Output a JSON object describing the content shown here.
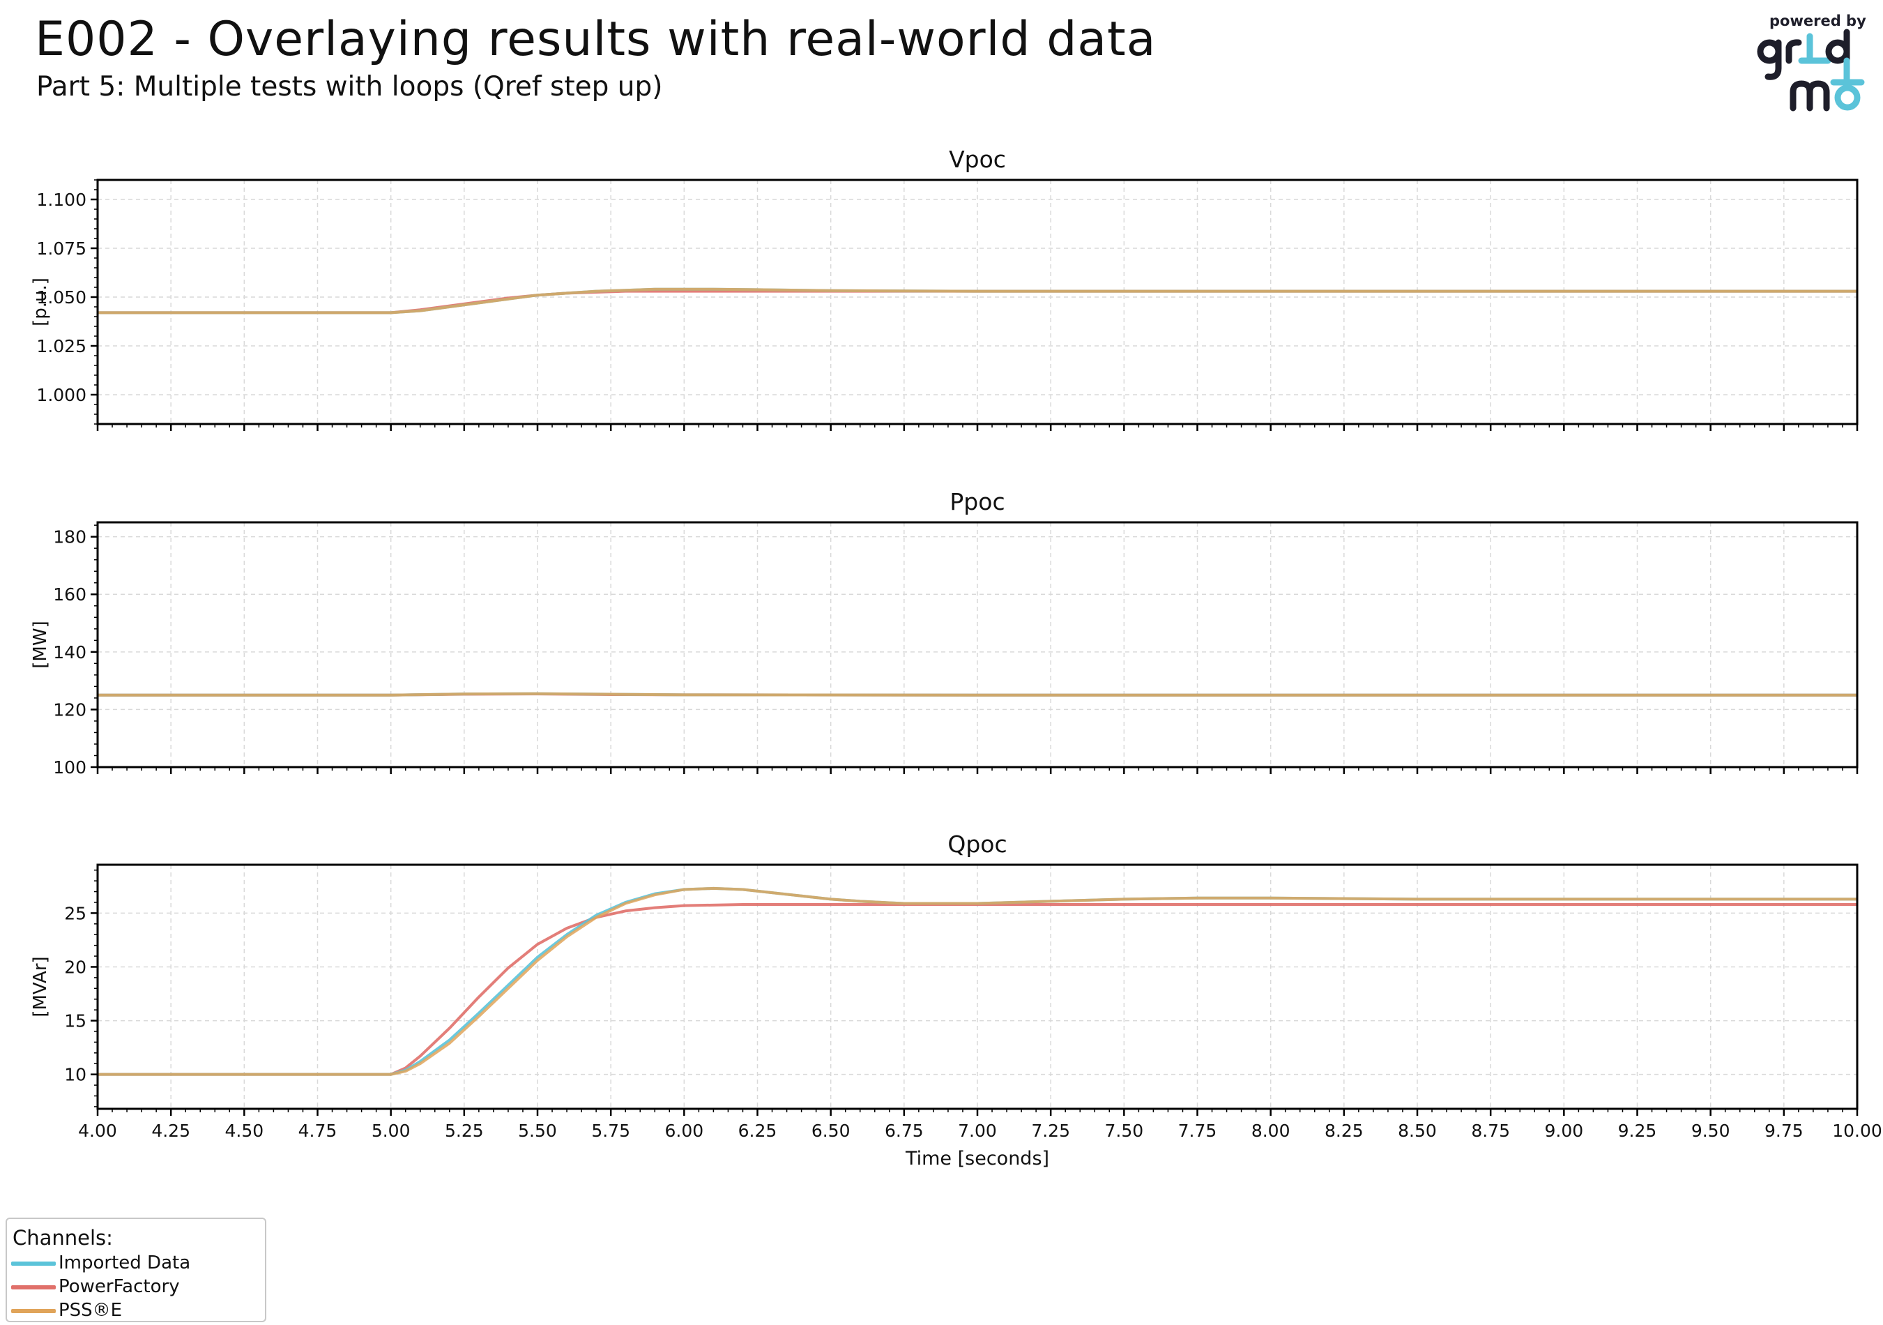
{
  "header": {
    "title": "E002 - Overlaying results with real-world data",
    "subtitle": "Part 5: Multiple tests with loops (Qref step up)"
  },
  "logo": {
    "powered_by": "powered by",
    "brand_text": "gridmo",
    "colors": {
      "dark": "#1e1e2a",
      "accent": "#5bc3d9"
    }
  },
  "legend": {
    "title": "Channels:",
    "placement": "bottom-left",
    "items": [
      {
        "label": "Imported Data",
        "color": "#5bc3d9"
      },
      {
        "label": "PowerFactory",
        "color": "#e0706a"
      },
      {
        "label": "PSS®E",
        "color": "#e0a45a"
      }
    ]
  },
  "chart_data": [
    {
      "type": "line",
      "title": "Vpoc",
      "ylabel": "[p.u.]",
      "xlim": [
        4.0,
        10.0
      ],
      "ylim": [
        0.985,
        1.11
      ],
      "yticks": [
        "1.000",
        "1.025",
        "1.050",
        "1.075",
        "1.100"
      ],
      "grid": true,
      "series": [
        {
          "name": "Imported Data",
          "color": "#5bc3d9",
          "x": [
            4.0,
            5.0,
            5.1,
            5.2,
            5.3,
            5.4,
            5.5,
            5.6,
            5.7,
            5.8,
            5.9,
            6.0,
            6.1,
            6.25,
            6.5,
            7.0,
            8.0,
            9.0,
            10.0
          ],
          "y": [
            1.042,
            1.042,
            1.043,
            1.045,
            1.047,
            1.049,
            1.051,
            1.052,
            1.053,
            1.0535,
            1.054,
            1.054,
            1.054,
            1.0538,
            1.0533,
            1.053,
            1.053,
            1.053,
            1.053
          ]
        },
        {
          "name": "PowerFactory",
          "color": "#e0706a",
          "x": [
            4.0,
            5.0,
            5.1,
            5.2,
            5.3,
            5.4,
            5.5,
            5.6,
            5.7,
            5.8,
            6.0,
            6.5,
            7.0,
            8.0,
            9.0,
            10.0
          ],
          "y": [
            1.042,
            1.042,
            1.0435,
            1.0455,
            1.0475,
            1.0495,
            1.051,
            1.052,
            1.0525,
            1.053,
            1.053,
            1.053,
            1.053,
            1.053,
            1.053,
            1.053
          ]
        },
        {
          "name": "PSS®E",
          "color": "#e0a45a",
          "x": [
            4.0,
            5.0,
            5.1,
            5.2,
            5.3,
            5.4,
            5.5,
            5.6,
            5.7,
            5.8,
            5.9,
            6.0,
            6.1,
            6.25,
            6.5,
            7.0,
            8.0,
            9.0,
            10.0
          ],
          "y": [
            1.042,
            1.042,
            1.043,
            1.045,
            1.047,
            1.049,
            1.051,
            1.052,
            1.053,
            1.0535,
            1.054,
            1.054,
            1.054,
            1.0538,
            1.0533,
            1.053,
            1.053,
            1.053,
            1.053
          ]
        }
      ]
    },
    {
      "type": "line",
      "title": "Ppoc",
      "ylabel": "[MW]",
      "xlim": [
        4.0,
        10.0
      ],
      "ylim": [
        100,
        185
      ],
      "yticks": [
        "100",
        "120",
        "140",
        "160",
        "180"
      ],
      "grid": true,
      "series": [
        {
          "name": "Imported Data",
          "color": "#5bc3d9",
          "x": [
            4.0,
            5.0,
            5.25,
            5.5,
            5.75,
            6.0,
            7.0,
            8.0,
            9.0,
            10.0
          ],
          "y": [
            125,
            125,
            125.4,
            125.5,
            125.3,
            125.1,
            125,
            125,
            125,
            125
          ]
        },
        {
          "name": "PowerFactory",
          "color": "#e0706a",
          "x": [
            4.0,
            5.0,
            5.25,
            5.5,
            5.75,
            6.0,
            7.0,
            8.0,
            9.0,
            10.0
          ],
          "y": [
            125,
            125,
            125.3,
            125.4,
            125.2,
            125.1,
            125,
            125,
            125,
            125
          ]
        },
        {
          "name": "PSS®E",
          "color": "#e0a45a",
          "x": [
            4.0,
            5.0,
            5.25,
            5.5,
            5.75,
            6.0,
            7.0,
            8.0,
            9.0,
            10.0
          ],
          "y": [
            125,
            125,
            125.4,
            125.5,
            125.3,
            125.1,
            125,
            125,
            125,
            125
          ]
        }
      ]
    },
    {
      "type": "line",
      "title": "Qpoc",
      "ylabel": "[MVAr]",
      "xlabel": "Time [seconds]",
      "xlim": [
        4.0,
        10.0
      ],
      "ylim": [
        6.8,
        29.5
      ],
      "xticks": [
        "4.00",
        "4.25",
        "4.50",
        "4.75",
        "5.00",
        "5.25",
        "5.50",
        "5.75",
        "6.00",
        "6.25",
        "6.50",
        "6.75",
        "7.00",
        "7.25",
        "7.50",
        "7.75",
        "8.00",
        "8.25",
        "8.50",
        "8.75",
        "9.00",
        "9.25",
        "9.50",
        "9.75",
        "10.00"
      ],
      "yticks": [
        "10",
        "15",
        "20",
        "25"
      ],
      "grid": true,
      "series": [
        {
          "name": "Imported Data",
          "color": "#5bc3d9",
          "x": [
            4.0,
            5.0,
            5.05,
            5.1,
            5.2,
            5.3,
            5.4,
            5.5,
            5.6,
            5.7,
            5.8,
            5.9,
            6.0,
            6.1,
            6.2,
            6.3,
            6.4,
            6.5,
            6.6,
            6.75,
            7.0,
            7.25,
            7.5,
            7.75,
            8.0,
            8.5,
            9.0,
            9.5,
            10.0
          ],
          "y": [
            10.0,
            10.0,
            10.4,
            11.2,
            13.2,
            15.7,
            18.3,
            20.9,
            23.0,
            24.8,
            26.0,
            26.8,
            27.2,
            27.3,
            27.2,
            26.9,
            26.6,
            26.3,
            26.1,
            25.9,
            25.9,
            26.1,
            26.3,
            26.4,
            26.4,
            26.3,
            26.3,
            26.3,
            26.3
          ]
        },
        {
          "name": "PowerFactory",
          "color": "#e0706a",
          "x": [
            4.0,
            5.0,
            5.05,
            5.1,
            5.2,
            5.3,
            5.4,
            5.5,
            5.6,
            5.7,
            5.8,
            5.9,
            6.0,
            6.2,
            6.5,
            7.0,
            8.0,
            9.0,
            10.0
          ],
          "y": [
            10.0,
            10.0,
            10.6,
            11.7,
            14.3,
            17.2,
            19.9,
            22.1,
            23.6,
            24.6,
            25.2,
            25.5,
            25.7,
            25.8,
            25.8,
            25.8,
            25.8,
            25.8,
            25.8
          ]
        },
        {
          "name": "PSS®E",
          "color": "#e0a45a",
          "x": [
            4.0,
            5.0,
            5.05,
            5.1,
            5.2,
            5.3,
            5.4,
            5.5,
            5.6,
            5.7,
            5.8,
            5.9,
            6.0,
            6.1,
            6.2,
            6.3,
            6.4,
            6.5,
            6.6,
            6.75,
            7.0,
            7.25,
            7.5,
            7.75,
            8.0,
            8.5,
            9.0,
            9.5,
            10.0
          ],
          "y": [
            10.0,
            10.0,
            10.3,
            11.0,
            12.9,
            15.4,
            18.0,
            20.6,
            22.8,
            24.6,
            25.9,
            26.7,
            27.2,
            27.3,
            27.2,
            26.9,
            26.6,
            26.3,
            26.1,
            25.9,
            25.9,
            26.1,
            26.3,
            26.4,
            26.4,
            26.3,
            26.3,
            26.3,
            26.3
          ]
        }
      ]
    }
  ]
}
